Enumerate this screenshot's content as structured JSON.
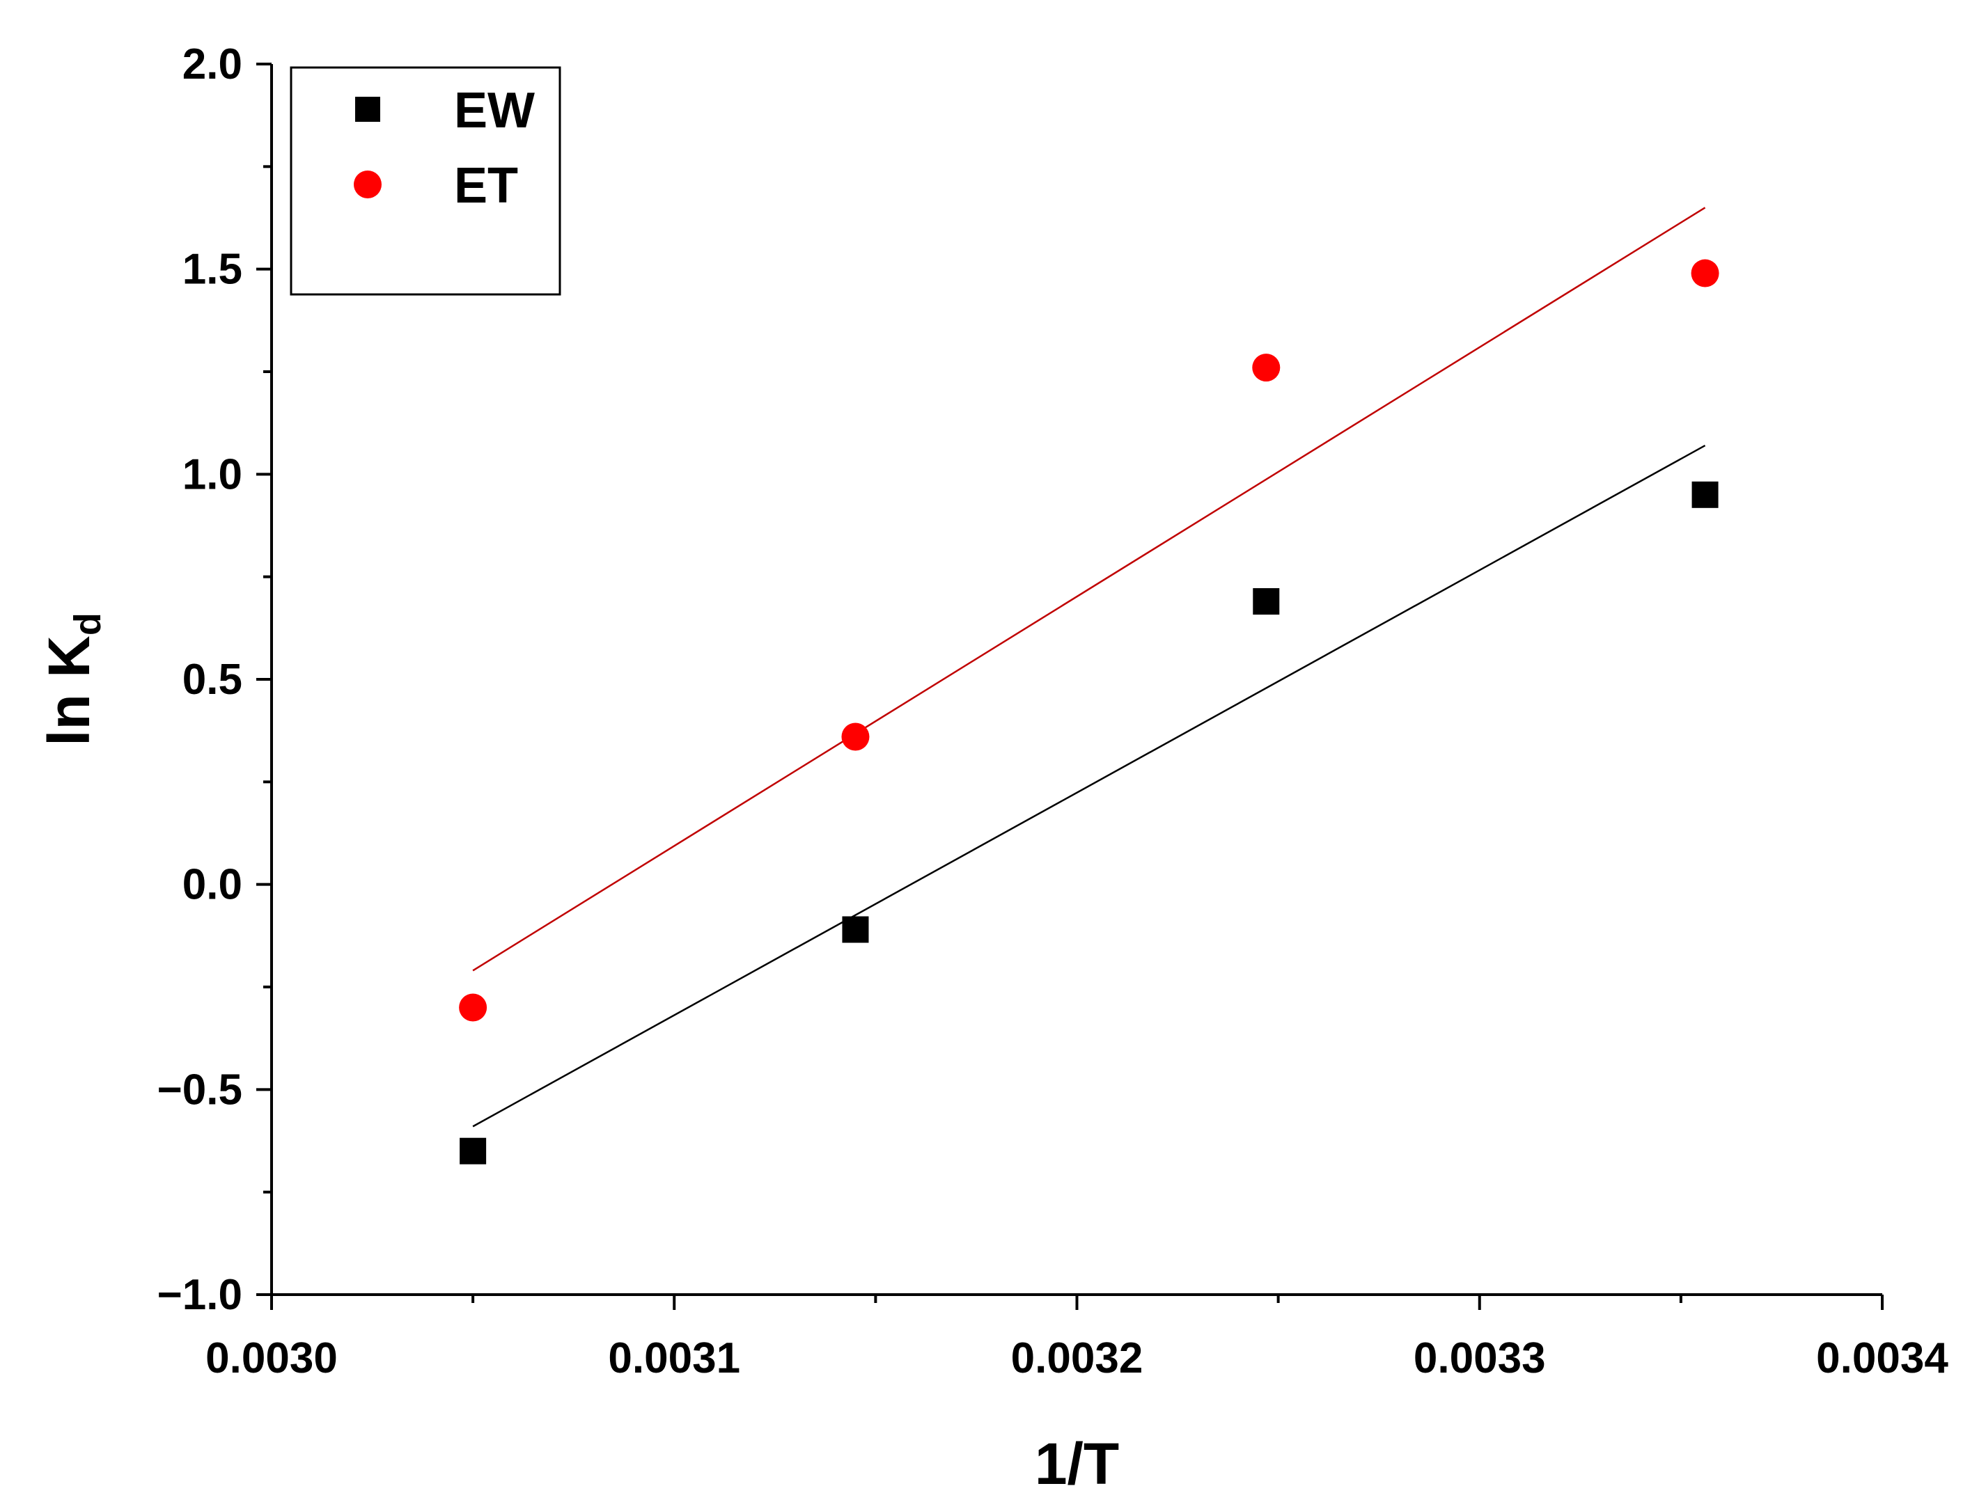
{
  "chart_data": {
    "type": "scatter",
    "xlabel": "1/T",
    "ylabel": {
      "main": "ln K",
      "subscript": "d"
    },
    "xlim": [
      0.003,
      0.0034
    ],
    "ylim": [
      -1.0,
      2.0
    ],
    "xticks": [
      "0.0030",
      "0.0031",
      "0.0032",
      "0.0033",
      "0.0034"
    ],
    "yticks": [
      "−1.0",
      "−0.5",
      "0.0",
      "0.5",
      "1.0",
      "1.5",
      "2.0"
    ],
    "grid": false,
    "legend_position": "top-left",
    "series": [
      {
        "name": "EW",
        "marker": "square",
        "color": "#000000",
        "x": [
          0.00305,
          0.003145,
          0.003247,
          0.003356
        ],
        "y": [
          -0.65,
          -0.11,
          0.69,
          0.95
        ],
        "fit": {
          "x": [
            0.00305,
            0.003356
          ],
          "y": [
            -0.59,
            1.07
          ],
          "color": "#000000"
        }
      },
      {
        "name": "ET",
        "marker": "circle",
        "color": "#ff0000",
        "x": [
          0.00305,
          0.003145,
          0.003247,
          0.003356
        ],
        "y": [
          -0.3,
          0.36,
          1.26,
          1.49
        ],
        "fit": {
          "x": [
            0.00305,
            0.003356
          ],
          "y": [
            -0.21,
            1.65
          ],
          "color": "#c00000"
        }
      }
    ]
  }
}
